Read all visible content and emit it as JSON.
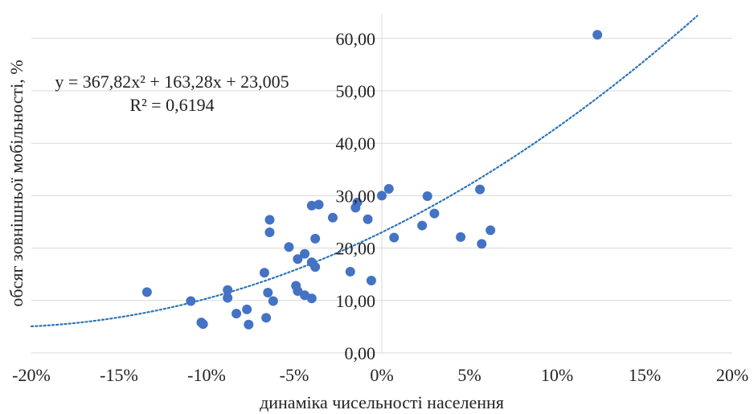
{
  "chart_data": {
    "type": "scatter",
    "title": "",
    "xlabel": "динаміка чисельності населення",
    "ylabel": "обсяг зовнішньої мобільності, %",
    "xlim": [
      -0.2,
      0.2
    ],
    "ylim": [
      0,
      60
    ],
    "x_ticks": [
      -0.2,
      -0.15,
      -0.1,
      -0.05,
      0,
      0.05,
      0.1,
      0.15,
      0.2
    ],
    "x_tick_labels": [
      "-20%",
      "-15%",
      "-10%",
      "-5%",
      "0%",
      "5%",
      "10%",
      "15%",
      "20%"
    ],
    "y_ticks": [
      0,
      10,
      20,
      30,
      40,
      50,
      60
    ],
    "y_tick_labels": [
      "0,00",
      "10,00",
      "20,00",
      "30,00",
      "40,00",
      "50,00",
      "60,00"
    ],
    "grid": "horizontal",
    "legend": "none",
    "point_color": "#4472c4",
    "trendline_color": "#2e75b6",
    "annotation": {
      "equation": "y = 367,82x² + 163,28x + 23,005",
      "r2": "R² = 0,6194"
    },
    "trendline": {
      "type": "polynomial",
      "coefficients": [
        367.82,
        163.28,
        23.005
      ]
    },
    "points": [
      {
        "x": -0.134,
        "y": 11.6
      },
      {
        "x": -0.109,
        "y": 9.9
      },
      {
        "x": -0.103,
        "y": 5.8
      },
      {
        "x": -0.102,
        "y": 5.5
      },
      {
        "x": -0.088,
        "y": 12.0
      },
      {
        "x": -0.088,
        "y": 10.5
      },
      {
        "x": -0.083,
        "y": 7.5
      },
      {
        "x": -0.077,
        "y": 8.3
      },
      {
        "x": -0.076,
        "y": 5.4
      },
      {
        "x": -0.067,
        "y": 15.3
      },
      {
        "x": -0.066,
        "y": 6.7
      },
      {
        "x": -0.065,
        "y": 11.5
      },
      {
        "x": -0.064,
        "y": 25.4
      },
      {
        "x": -0.064,
        "y": 23.0
      },
      {
        "x": -0.062,
        "y": 9.9
      },
      {
        "x": -0.053,
        "y": 20.2
      },
      {
        "x": -0.049,
        "y": 12.8
      },
      {
        "x": -0.048,
        "y": 17.9
      },
      {
        "x": -0.048,
        "y": 11.8
      },
      {
        "x": -0.044,
        "y": 18.9
      },
      {
        "x": -0.044,
        "y": 11.0
      },
      {
        "x": -0.04,
        "y": 28.1
      },
      {
        "x": -0.04,
        "y": 17.3
      },
      {
        "x": -0.04,
        "y": 10.4
      },
      {
        "x": -0.038,
        "y": 21.8
      },
      {
        "x": -0.038,
        "y": 16.4
      },
      {
        "x": -0.036,
        "y": 28.3
      },
      {
        "x": -0.028,
        "y": 25.8
      },
      {
        "x": -0.018,
        "y": 15.5
      },
      {
        "x": -0.015,
        "y": 27.7
      },
      {
        "x": -0.014,
        "y": 28.7
      },
      {
        "x": -0.008,
        "y": 25.5
      },
      {
        "x": -0.006,
        "y": 13.8
      },
      {
        "x": 0.0,
        "y": 30.0
      },
      {
        "x": 0.004,
        "y": 31.3
      },
      {
        "x": 0.007,
        "y": 22.0
      },
      {
        "x": 0.023,
        "y": 24.3
      },
      {
        "x": 0.026,
        "y": 29.9
      },
      {
        "x": 0.03,
        "y": 26.6
      },
      {
        "x": 0.045,
        "y": 22.1
      },
      {
        "x": 0.056,
        "y": 31.2
      },
      {
        "x": 0.057,
        "y": 20.8
      },
      {
        "x": 0.062,
        "y": 23.4
      },
      {
        "x": 0.123,
        "y": 60.7
      }
    ]
  }
}
